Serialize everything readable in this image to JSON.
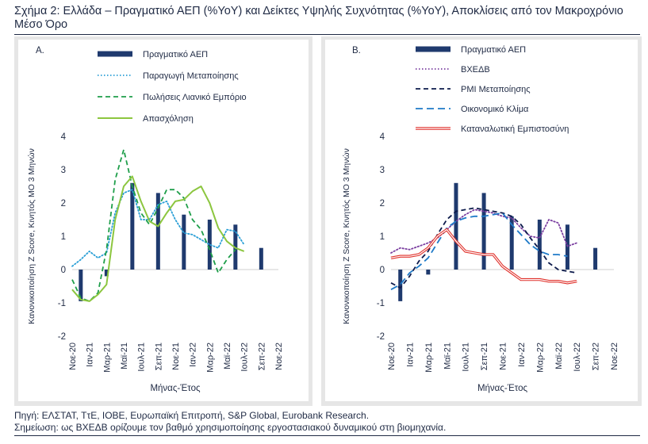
{
  "title": "Σχήμα 2: Ελλάδα – Πραγματικό ΑΕΠ (%YoY) και Δείκτες Υψηλής Συχνότητας (%YoY), Αποκλίσεις από τον Μακροχρόνιο Μέσο Όρο",
  "source_note": "Πηγή: ΕΛΣΤΑΤ, ΤτΕ, ΙΟΒΕ, Ευρωπαϊκή Επιτροπή, S&P Global, Eurobank Research.",
  "definition_note": "Σημείωση: ως ΒΧΕΔΒ ορίζουμε τον βαθμό χρησιμοποίησης εργοστασιακού δυναμικού στη βιομηχανία.",
  "colors": {
    "gdp": "#1f3a6e",
    "manufacturing": "#2a9fd6",
    "retail": "#1e9e4a",
    "employment": "#8cc63f",
    "bxedb": "#7b3fa0",
    "pmi": "#0d1b4c",
    "climate": "#1e7ac8",
    "confidence": "#e0312b"
  },
  "chart_data": [
    {
      "panel_label": "A.",
      "type": "bar+line",
      "xlabel": "Μήνας-Έτος",
      "ylabel": "Κανονικοποίηση Z Score, Κινητός ΜΟ 3 Μηνών",
      "ylim": [
        -2,
        4
      ],
      "yticks": [
        "-2",
        "-1",
        "0",
        "1",
        "2",
        "3",
        "4"
      ],
      "x_ticks": [
        "Νοε-20",
        "Ιαν-21",
        "Μαρ-21",
        "Μαϊ-21",
        "Ιουλ-21",
        "Σεπ-21",
        "Νοε-21",
        "Ιαν-22",
        "Μαρ-22",
        "Μαϊ-22",
        "Ιουλ-22",
        "Σεπ-22",
        "Νοε-22"
      ],
      "bars": {
        "name": "Πραγματικό ΑΕΠ",
        "months": [
          "Δεκ-20",
          "Μαρ-21",
          "Ιουν-21",
          "Σεπ-21",
          "Δεκ-21",
          "Μαρ-22",
          "Ιουν-22",
          "Σεπ-22"
        ],
        "values": [
          -0.95,
          -0.2,
          2.6,
          2.3,
          1.65,
          1.5,
          1.35,
          0.65
        ]
      },
      "series": [
        {
          "name": "Παραγωγή Μεταποίησης",
          "style": "dotted",
          "values": [
            0.1,
            0.3,
            0.55,
            0.35,
            0.5,
            1.7,
            2.3,
            2.4,
            1.5,
            1.5,
            1.95,
            2.05,
            1.5,
            1.1,
            1.05,
            0.9,
            0.75,
            0.65,
            1.2,
            1.15,
            0.75
          ]
        },
        {
          "name": "Πωλήσεις Λιανικό Εμπόριο",
          "style": "dashed",
          "values": [
            -0.3,
            -0.85,
            -0.95,
            -0.7,
            0.6,
            2.7,
            3.6,
            2.5,
            1.7,
            1.35,
            1.85,
            2.4,
            2.4,
            2.15,
            1.5,
            1.2,
            0.6,
            -0.1,
            0.3,
            0.6
          ]
        },
        {
          "name": "Απασχόληση",
          "style": "solid",
          "values": [
            -0.6,
            -0.9,
            -0.95,
            -0.75,
            -0.45,
            1.5,
            2.5,
            2.8,
            2.05,
            1.45,
            1.3,
            1.7,
            2.05,
            2.1,
            2.35,
            2.5,
            2.0,
            1.25,
            0.85,
            0.65,
            0.55
          ]
        }
      ]
    },
    {
      "panel_label": "B.",
      "type": "bar+line",
      "xlabel": "Μήνας-Έτος",
      "ylabel": "Κανονικοποίηση Z Score, Κινητός ΜΟ 3 Μηνών",
      "ylim": [
        -2,
        4
      ],
      "yticks": [
        "-2",
        "-1",
        "0",
        "1",
        "2",
        "3",
        "4"
      ],
      "x_ticks": [
        "Νοε-20",
        "Ιαν-21",
        "Μαρ-21",
        "Μαϊ-21",
        "Ιουλ-21",
        "Σεπ-21",
        "Νοε-21",
        "Ιαν-22",
        "Μαρ-22",
        "Μαϊ-22",
        "Ιουλ-22",
        "Σεπ-22",
        "Νοε-22"
      ],
      "bars": {
        "name": "Πραγματικό ΑΕΠ",
        "months": [
          "Δεκ-20",
          "Μαρ-21",
          "Ιουν-21",
          "Σεπ-21",
          "Δεκ-21",
          "Μαρ-22",
          "Ιουν-22",
          "Σεπ-22"
        ],
        "values": [
          -0.95,
          -0.15,
          2.6,
          2.3,
          1.6,
          1.5,
          1.35,
          0.65
        ]
      },
      "series": [
        {
          "name": "ΒΧΕΔΒ",
          "style": "dotted",
          "values": [
            0.5,
            0.65,
            0.6,
            0.7,
            0.8,
            0.95,
            1.2,
            1.45,
            1.65,
            1.8,
            1.75,
            1.7,
            1.6,
            1.55,
            1.25,
            1.0,
            0.95,
            1.5,
            1.4,
            0.7,
            0.8
          ]
        },
        {
          "name": "PMI Μεταποίησης",
          "style": "dashed",
          "values": [
            -0.4,
            -0.55,
            -0.2,
            0.25,
            0.55,
            1.05,
            1.5,
            1.75,
            1.8,
            1.85,
            1.8,
            1.75,
            1.7,
            1.6,
            1.35,
            0.95,
            0.6,
            0.2,
            0.0,
            -0.05,
            -0.1
          ]
        },
        {
          "name": "Οικονομικό Κλίμα",
          "style": "longdash",
          "values": [
            -0.6,
            -0.45,
            -0.1,
            0.1,
            0.35,
            0.8,
            1.25,
            1.45,
            1.55,
            1.6,
            1.6,
            1.65,
            1.7,
            1.35,
            1.05,
            0.75,
            0.55,
            0.45,
            0.45,
            0.4
          ]
        },
        {
          "name": "Καταναλωτική Εμπιστοσύνη",
          "style": "double-red",
          "values": [
            0.35,
            0.4,
            0.4,
            0.45,
            0.65,
            1.0,
            1.2,
            0.85,
            0.55,
            0.5,
            0.45,
            0.45,
            0.1,
            -0.1,
            -0.3,
            -0.3,
            -0.3,
            -0.35,
            -0.35,
            -0.4,
            -0.35
          ]
        }
      ]
    }
  ]
}
